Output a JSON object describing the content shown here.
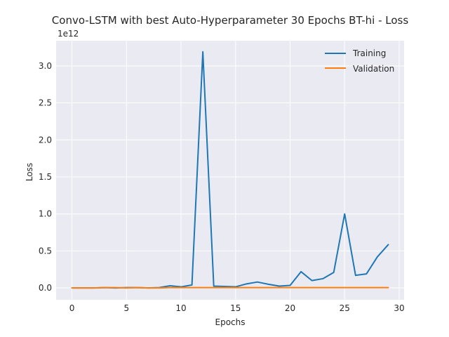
{
  "chart_data": {
    "type": "line",
    "title": "Convo-LSTM with best Auto-Hyperparameter 30 Epochs BT-hi - Loss",
    "xlabel": "Epochs",
    "ylabel": "Loss",
    "y_multiplier_label": "1e12",
    "xlim": [
      -1.45,
      30.45
    ],
    "ylim": [
      -0.16,
      3.34
    ],
    "x_ticks": [
      0,
      5,
      10,
      15,
      20,
      25,
      30
    ],
    "y_ticks": [
      0.0,
      0.5,
      1.0,
      1.5,
      2.0,
      2.5,
      3.0
    ],
    "y_tick_labels": [
      "0.0",
      "0.5",
      "1.0",
      "1.5",
      "2.0",
      "2.5",
      "3.0"
    ],
    "grid": true,
    "legend_position": "top-right",
    "x": [
      0,
      1,
      2,
      3,
      4,
      5,
      6,
      7,
      8,
      9,
      10,
      11,
      12,
      13,
      14,
      15,
      16,
      17,
      18,
      19,
      20,
      21,
      22,
      23,
      24,
      25,
      26,
      27,
      28,
      29
    ],
    "series": [
      {
        "name": "Training",
        "color": "#1f77b4",
        "values": [
          0.0,
          0.0,
          0.0,
          0.005,
          0.0,
          0.005,
          0.005,
          0.0,
          0.005,
          0.03,
          0.015,
          0.04,
          3.19,
          0.025,
          0.02,
          0.015,
          0.055,
          0.08,
          0.05,
          0.025,
          0.035,
          0.22,
          0.1,
          0.125,
          0.21,
          1.0,
          0.17,
          0.19,
          0.42,
          0.585
        ]
      },
      {
        "name": "Validation",
        "color": "#ff7f0e",
        "values": [
          0.0,
          0.0,
          0.0,
          0.005,
          0.005,
          0.0,
          0.005,
          0.0,
          0.0,
          0.005,
          0.005,
          0.005,
          0.005,
          0.005,
          0.005,
          0.005,
          0.005,
          0.005,
          0.005,
          0.005,
          0.005,
          0.005,
          0.005,
          0.005,
          0.005,
          0.005,
          0.005,
          0.005,
          0.005,
          0.005
        ]
      }
    ]
  },
  "colors": {
    "plot_background": "#eaeaf2",
    "grid": "#ffffff",
    "text": "#262626"
  }
}
